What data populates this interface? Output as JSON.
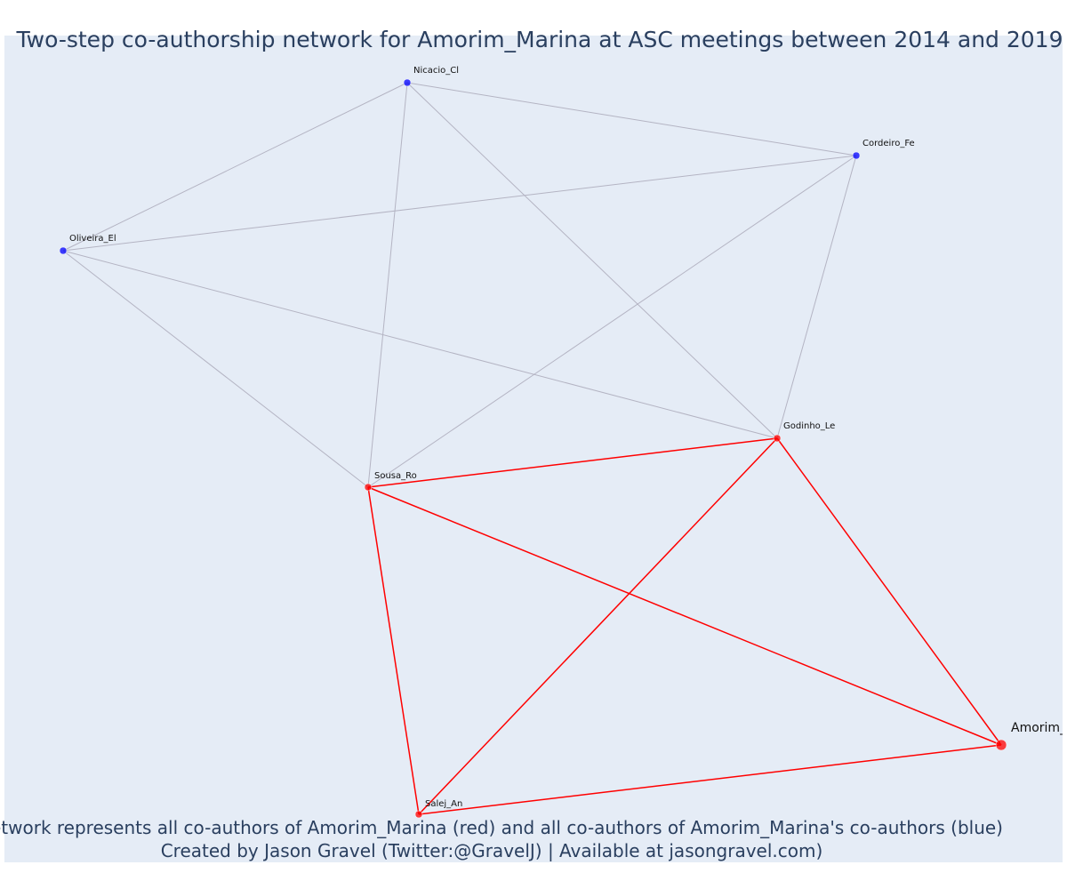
{
  "title": "Two-step co-authorship network for Amorim_Marina at ASC meetings between 2014 and 2019",
  "caption": {
    "line1": "Network represents all co-authors of Amorim_Marina (red) and all co-authors of Amorim_Marina's co-authors (blue)",
    "line2": "Created by Jason Gravel (Twitter:@GravelJ) | Available at jasongravel.com)"
  },
  "colors": {
    "plot_background": "#e5ecf6",
    "title_text": "#2a3f5f",
    "first_step": "#ff0000",
    "second_step": "#0000ff",
    "second_step_edge": "#b4b4c3"
  },
  "nodes": [
    {
      "id": "amorim",
      "label": "Amorim_",
      "group": "focal"
    },
    {
      "id": "sousa",
      "label": "Sousa_Ro",
      "group": "first_step"
    },
    {
      "id": "godinho",
      "label": "Godinho_Le",
      "group": "first_step"
    },
    {
      "id": "salej",
      "label": "Salej_An",
      "group": "first_step"
    },
    {
      "id": "nicacio",
      "label": "Nicacio_Cl",
      "group": "second_step"
    },
    {
      "id": "cordeiro",
      "label": "Cordeiro_Fe",
      "group": "second_step"
    },
    {
      "id": "oliveira",
      "label": "Oliveira_El",
      "group": "second_step"
    }
  ],
  "edges": [
    {
      "source": "sousa",
      "target": "godinho",
      "group": "first_step"
    },
    {
      "source": "sousa",
      "target": "salej",
      "group": "first_step"
    },
    {
      "source": "sousa",
      "target": "amorim",
      "group": "first_step"
    },
    {
      "source": "godinho",
      "target": "salej",
      "group": "first_step"
    },
    {
      "source": "godinho",
      "target": "amorim",
      "group": "first_step"
    },
    {
      "source": "salej",
      "target": "amorim",
      "group": "first_step"
    },
    {
      "source": "nicacio",
      "target": "cordeiro",
      "group": "second_step"
    },
    {
      "source": "nicacio",
      "target": "oliveira",
      "group": "second_step"
    },
    {
      "source": "nicacio",
      "target": "sousa",
      "group": "second_step"
    },
    {
      "source": "nicacio",
      "target": "godinho",
      "group": "second_step"
    },
    {
      "source": "cordeiro",
      "target": "oliveira",
      "group": "second_step"
    },
    {
      "source": "cordeiro",
      "target": "sousa",
      "group": "second_step"
    },
    {
      "source": "cordeiro",
      "target": "godinho",
      "group": "second_step"
    },
    {
      "source": "oliveira",
      "target": "sousa",
      "group": "second_step"
    },
    {
      "source": "oliveira",
      "target": "godinho",
      "group": "second_step"
    }
  ]
}
